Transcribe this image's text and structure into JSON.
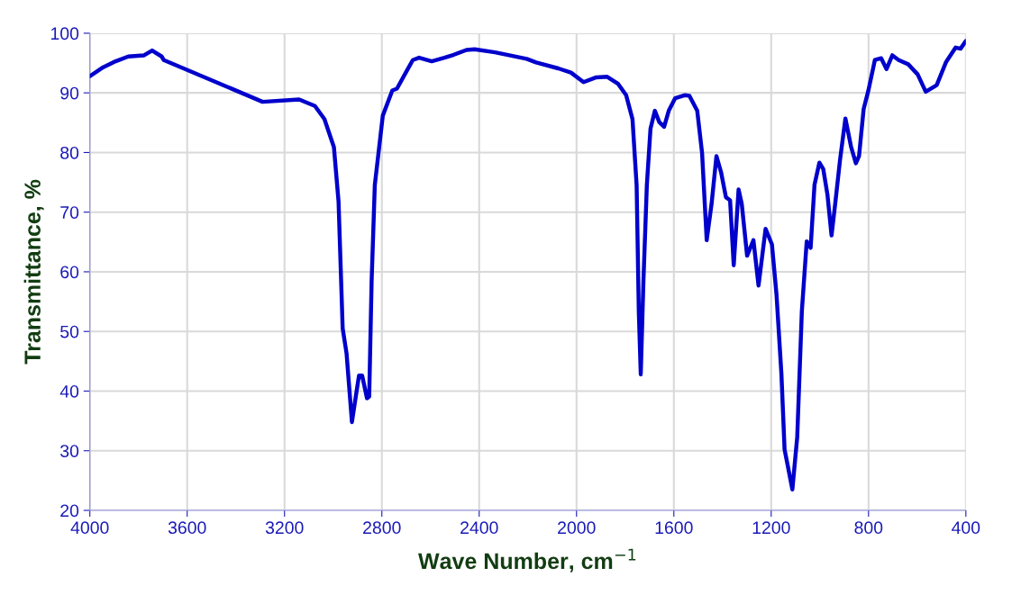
{
  "chart_data": {
    "type": "line",
    "xlabel": "Wave Number, cm$^{−1}$",
    "ylabel": "Transmittance, %",
    "xlim": [
      4000,
      400
    ],
    "ylim": [
      20,
      100
    ],
    "xticks": [
      4000,
      3600,
      3200,
      2800,
      2400,
      2000,
      1600,
      1200,
      800,
      400
    ],
    "yticks": [
      20,
      30,
      40,
      50,
      60,
      70,
      80,
      90,
      100
    ],
    "grid": true,
    "marker": "none",
    "line_style": "solid",
    "series": [
      {
        "color": "#0000cc",
        "x": [
          4000,
          3945,
          3894,
          3842,
          3777,
          3744,
          3705,
          3696,
          3290,
          3140,
          3075,
          3036,
          2997,
          2978,
          2961,
          2945,
          2923,
          2894,
          2881,
          2861,
          2852,
          2842,
          2829,
          2796,
          2757,
          2738,
          2699,
          2673,
          2647,
          2595,
          2543,
          2504,
          2452,
          2419,
          2335,
          2205,
          2166,
          2075,
          2023,
          1971,
          1919,
          1874,
          1829,
          1796,
          1770,
          1753,
          1744,
          1736,
          1725,
          1711,
          1696,
          1678,
          1660,
          1640,
          1621,
          1595,
          1556,
          1536,
          1504,
          1484,
          1465,
          1445,
          1425,
          1406,
          1386,
          1369,
          1354,
          1334,
          1321,
          1299,
          1273,
          1252,
          1223,
          1197,
          1178,
          1158,
          1145,
          1132,
          1113,
          1093,
          1074,
          1054,
          1038,
          1022,
          1002,
          986,
          969,
          952,
          937,
          917,
          895,
          872,
          852,
          839,
          820,
          800,
          774,
          748,
          726,
          702,
          676,
          637,
          598,
          565,
          520,
          481,
          442,
          422,
          400
        ],
        "values": [
          92.8,
          94.3,
          95.3,
          96.1,
          96.3,
          97.1,
          96.1,
          95.5,
          88.5,
          88.9,
          87.8,
          85.6,
          80.9,
          71.8,
          50.5,
          46.3,
          34.8,
          42.6,
          42.6,
          38.8,
          39.1,
          58.5,
          74.5,
          86.2,
          90.4,
          90.7,
          93.6,
          95.5,
          95.9,
          95.3,
          95.9,
          96.4,
          97.2,
          97.3,
          96.8,
          95.7,
          95.1,
          94.1,
          93.4,
          91.8,
          92.6,
          92.7,
          91.5,
          89.6,
          85.6,
          74.5,
          53.2,
          42.8,
          58.5,
          74.5,
          84.0,
          87.0,
          85.1,
          84.3,
          87.0,
          89.1,
          89.6,
          89.5,
          87.0,
          79.9,
          65.3,
          71.4,
          79.4,
          76.7,
          72.5,
          72.0,
          61.1,
          73.8,
          71.4,
          62.7,
          65.3,
          57.7,
          67.2,
          64.6,
          56.1,
          42.9,
          30.2,
          27.5,
          23.5,
          32.3,
          53.4,
          65.1,
          64.0,
          74.6,
          78.3,
          77.2,
          73.0,
          66.1,
          71.4,
          78.8,
          85.7,
          81.0,
          78.2,
          79.4,
          87.3,
          90.5,
          95.5,
          95.8,
          94.0,
          96.3,
          95.5,
          94.8,
          93.1,
          90.2,
          91.3,
          95.2,
          97.6,
          97.4,
          98.7
        ]
      }
    ]
  }
}
